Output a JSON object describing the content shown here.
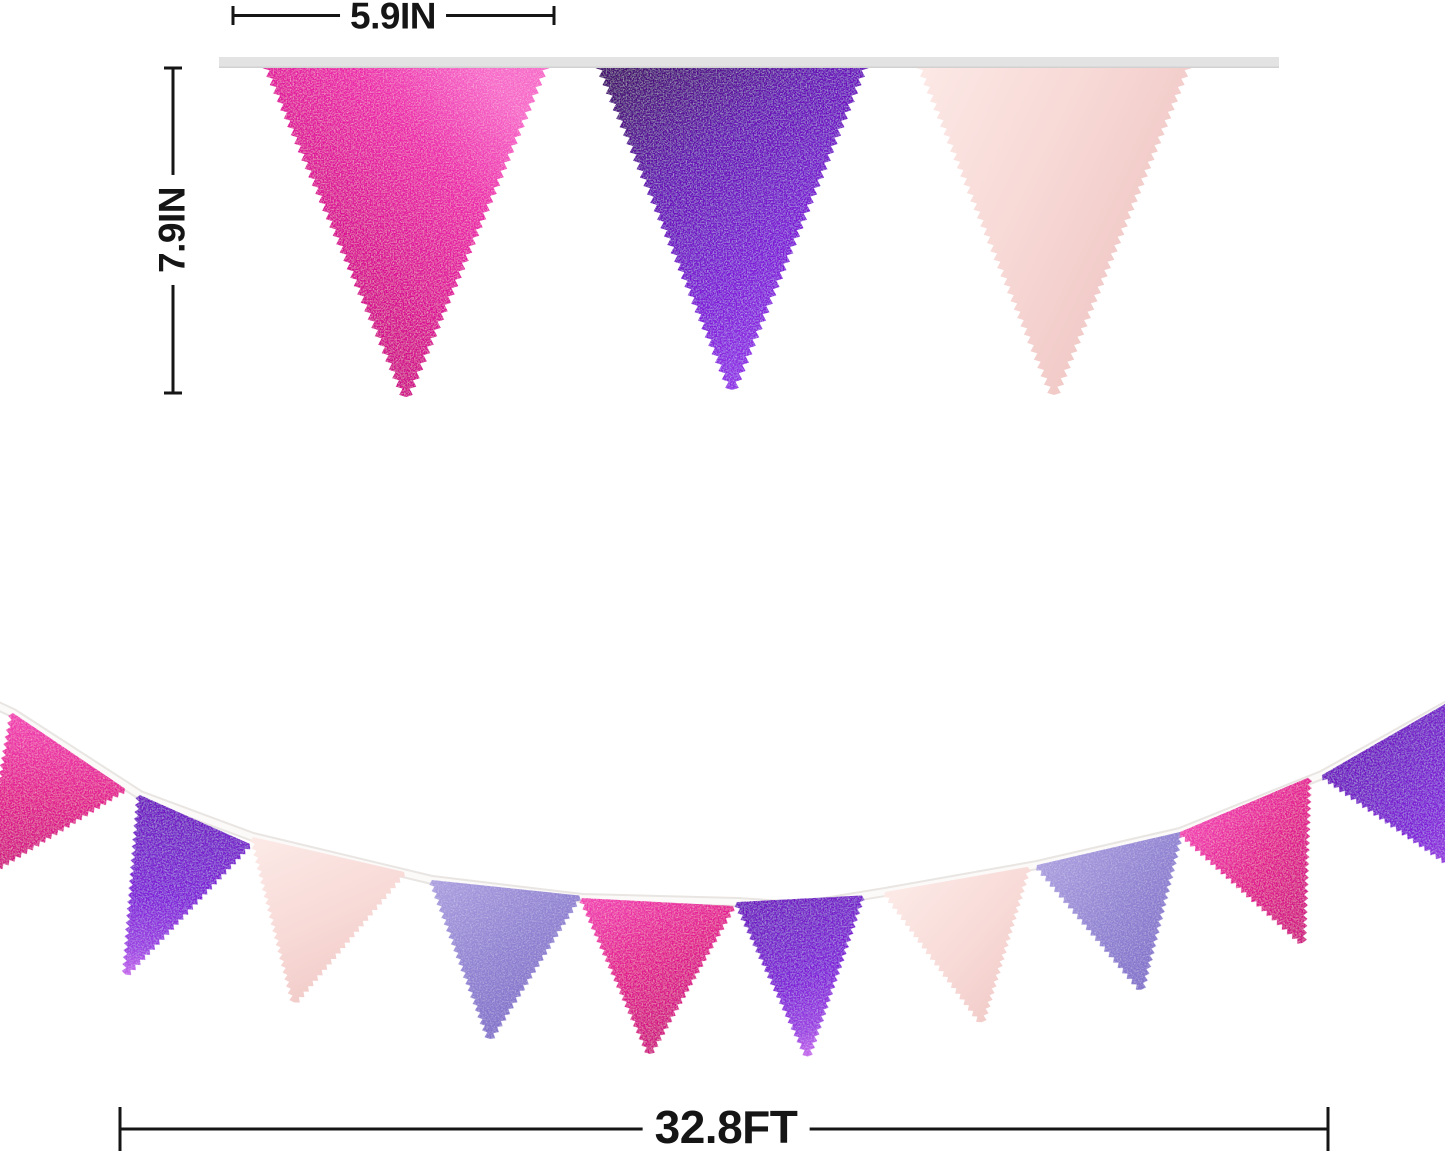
{
  "dimensions": {
    "flag_width": "5.9IN",
    "flag_height": "7.9IN",
    "banner_length": "32.8FT"
  },
  "palette": {
    "background": "#ffffff",
    "dimension_line": "#151515",
    "strip_fill": "#e4e3e3",
    "strip_edge": "#d2d1d1",
    "string_core": "#fbfaf9",
    "string_shadow": "#e9e5e2",
    "flag_colors": {
      "magenta": {
        "label": "metallic hot pink foil",
        "sparkle": true,
        "top": {
          "dir": [
            0,
            0.9,
            0.78,
            0.05
          ],
          "stops": [
            [
              0,
              "#c3067c"
            ],
            [
              0.4,
              "#d90d92"
            ],
            [
              0.75,
              "#ec28ab"
            ],
            [
              1,
              "#f767c9"
            ]
          ]
        },
        "garland": {
          "dir": [
            0,
            0,
            0.55,
            1
          ],
          "stops": [
            [
              0,
              "#f23eb3"
            ],
            [
              0.5,
              "#e2128e"
            ],
            [
              1,
              "#ce0a80"
            ]
          ]
        }
      },
      "purple": {
        "label": "metallic purple foil",
        "sparkle": true,
        "top": {
          "dir": [
            0.15,
            0,
            0.7,
            0.9
          ],
          "stops": [
            [
              0,
              "#45096f"
            ],
            [
              0.35,
              "#660fb5"
            ],
            [
              0.7,
              "#7d15d6"
            ],
            [
              1,
              "#9231e8"
            ]
          ]
        },
        "garland": {
          "dir": [
            0.2,
            0,
            0.5,
            1
          ],
          "stops": [
            [
              0,
              "#6d10c0"
            ],
            [
              0.55,
              "#7f17d8"
            ],
            [
              0.85,
              "#9b3ce2"
            ],
            [
              1,
              "#c566ec"
            ]
          ]
        }
      },
      "rose": {
        "label": "metallic rose gold / blush foil",
        "sparkle": false,
        "top": {
          "dir": [
            0,
            0,
            1,
            0.6
          ],
          "stops": [
            [
              0,
              "#fce9e6"
            ],
            [
              0.5,
              "#f7d8d5"
            ],
            [
              1,
              "#eec3c1"
            ]
          ]
        },
        "garland": {
          "dir": [
            0,
            0,
            0.8,
            1
          ],
          "stops": [
            [
              0,
              "#fceae7"
            ],
            [
              0.5,
              "#f8dbd8"
            ],
            [
              1,
              "#f0c8c5"
            ]
          ]
        }
      },
      "lavender": {
        "label": "metallic lavender foil",
        "sparkle": true,
        "top": {
          "dir": [
            0,
            0,
            0.85,
            0.9
          ],
          "stops": [
            [
              0,
              "#aa9ce0"
            ],
            [
              0.5,
              "#9183d3"
            ],
            [
              1,
              "#7b67c6"
            ]
          ]
        },
        "garland": {
          "dir": [
            0,
            0,
            0.85,
            1
          ],
          "stops": [
            [
              0,
              "#ab9edf"
            ],
            [
              0.5,
              "#8f80d2"
            ],
            [
              1,
              "#7a66c6"
            ]
          ]
        }
      }
    }
  },
  "top_banner": {
    "flags": [
      {
        "color": "magenta"
      },
      {
        "color": "purple"
      },
      {
        "color": "rose"
      }
    ]
  },
  "garland": {
    "flags": [
      {
        "color": "magenta"
      },
      {
        "color": "purple"
      },
      {
        "color": "rose"
      },
      {
        "color": "lavender"
      },
      {
        "color": "magenta"
      },
      {
        "color": "purple"
      },
      {
        "color": "rose"
      },
      {
        "color": "lavender"
      },
      {
        "color": "magenta"
      },
      {
        "color": "purple"
      }
    ]
  }
}
